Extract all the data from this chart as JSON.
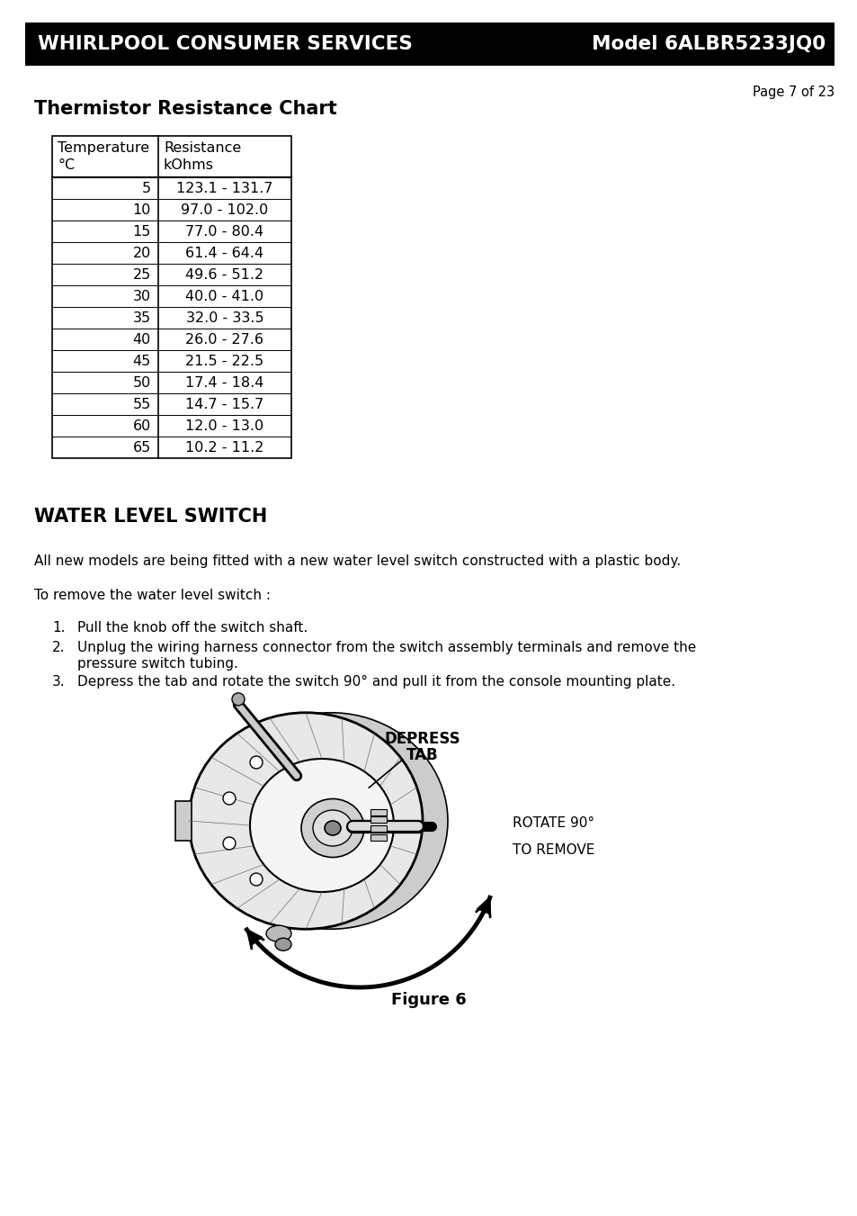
{
  "page_bg": "#ffffff",
  "header_bg": "#000000",
  "header_text_left": "WHIRLPOOL CONSUMER SERVICES",
  "header_text_right": "Model 6ALBR5233JQ0",
  "header_text_color": "#ffffff",
  "page_label": "Page 7 of 23",
  "chart_title": "Thermistor Resistance Chart",
  "col1_header1": "Temperature",
  "col1_header2": "°C",
  "col2_header1": "Resistance",
  "col2_header2": "kOhms",
  "table_data": [
    [
      "5",
      "123.1 - 131.7"
    ],
    [
      "10",
      "97.0 - 102.0"
    ],
    [
      "15",
      "77.0 - 80.4"
    ],
    [
      "20",
      "61.4 - 64.4"
    ],
    [
      "25",
      "49.6 - 51.2"
    ],
    [
      "30",
      "40.0 - 41.0"
    ],
    [
      "35",
      "32.0 - 33.5"
    ],
    [
      "40",
      "26.0 - 27.6"
    ],
    [
      "45",
      "21.5 - 22.5"
    ],
    [
      "50",
      "17.4 - 18.4"
    ],
    [
      "55",
      "14.7 - 15.7"
    ],
    [
      "60",
      "12.0 - 13.0"
    ],
    [
      "65",
      "10.2 - 11.2"
    ]
  ],
  "section_title": "WATER LEVEL SWITCH",
  "para1": "All new models are being fitted with a new water level switch constructed with a plastic body.",
  "para2": "To remove the water level switch :",
  "step1": "Pull the knob off the switch shaft.",
  "step2_line1": "Unplug the wiring harness connector from the switch assembly terminals and remove the",
  "step2_line2": "pressure switch tubing.",
  "step3": "Depress the tab and rotate the switch 90° and pull it from the console mounting plate.",
  "figure_label": "Figure 6",
  "depress_label1": "DEPRESS",
  "depress_label2": "TAB",
  "rotate_label1": "ROTATE 90°",
  "rotate_label2": "TO REMOVE"
}
